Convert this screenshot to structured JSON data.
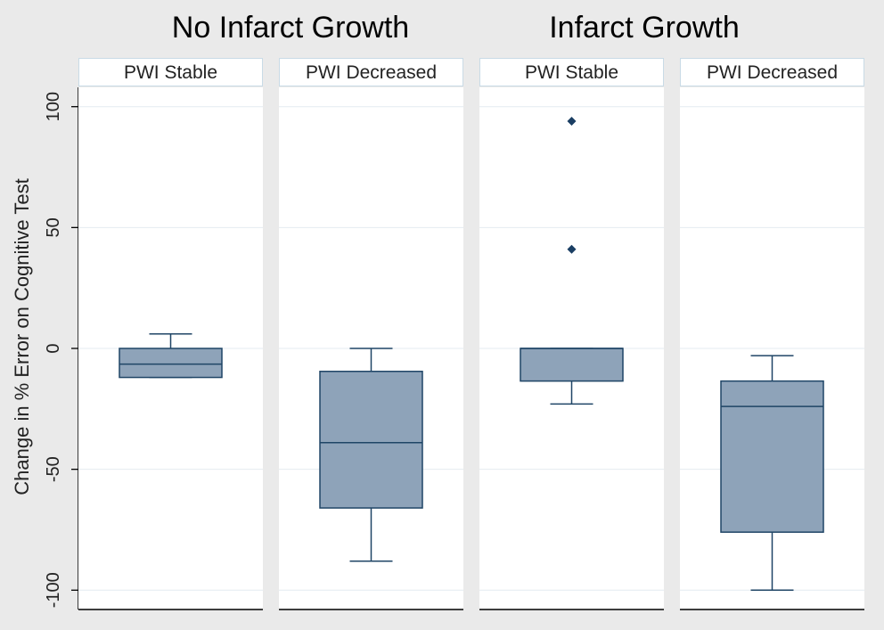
{
  "chart_data": {
    "type": "box",
    "ylabel": "Change in % Error on Cognitive Test",
    "ylim": [
      -108,
      108
    ],
    "yticks": [
      100,
      50,
      0,
      -50,
      -100
    ],
    "ytick_labels": [
      "100",
      "50",
      "0",
      "-50",
      "-100"
    ],
    "grid": true,
    "groups": [
      {
        "title": "No Infarct Growth",
        "panels": [
          0,
          1
        ]
      },
      {
        "title": "Infarct Growth",
        "panels": [
          2,
          3
        ]
      }
    ],
    "panels": [
      {
        "label": "PWI Stable",
        "box": {
          "whisker_low": -12,
          "q1": -12,
          "median": -6.5,
          "q3": 0,
          "whisker_high": 6
        },
        "outliers": []
      },
      {
        "label": "PWI Decreased",
        "box": {
          "whisker_low": -88,
          "q1": -66,
          "median": -39,
          "q3": -9.5,
          "whisker_high": 0
        },
        "outliers": []
      },
      {
        "label": "PWI Stable",
        "box": {
          "whisker_low": -23,
          "q1": -13.5,
          "median": 0,
          "q3": 0,
          "whisker_high": 0
        },
        "outliers": [
          94,
          41
        ]
      },
      {
        "label": "PWI Decreased",
        "box": {
          "whisker_low": -100,
          "q1": -76,
          "median": -24,
          "q3": -13.5,
          "whisker_high": -3
        },
        "outliers": []
      }
    ],
    "colors": {
      "background": "#eaeaea",
      "plot_bg": "#ffffff",
      "grid": "#e4ebf0",
      "box_fill": "#8ea3b9",
      "box_stroke": "#1f4566",
      "outlier": "#1a3e63",
      "header_border": "#c9dbe6"
    }
  }
}
